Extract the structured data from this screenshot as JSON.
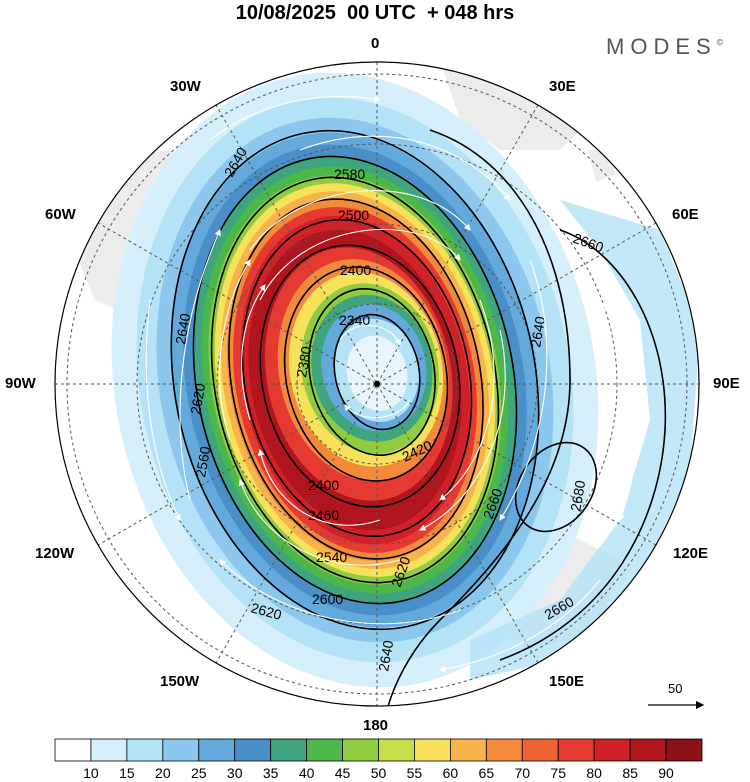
{
  "title": "10/08/2025  00 UTC  + 048 hrs",
  "brand": "MODES",
  "brand_mark": "©",
  "longitudes": {
    "lon_0": "0",
    "lon_30e": "30E",
    "lon_60e": "60E",
    "lon_90e": "90E",
    "lon_120e": "120E",
    "lon_150e": "150E",
    "lon_180": "180",
    "lon_150w": "150W",
    "lon_120w": "120W",
    "lon_90w": "90W",
    "lon_60w": "60W",
    "lon_30w": "30W"
  },
  "reference_vector": "50",
  "contours": [
    "2580",
    "2500",
    "2400",
    "2340",
    "2380",
    "2560",
    "2640",
    "2620",
    "2420",
    "2460",
    "2540",
    "2600",
    "2660",
    "2680"
  ],
  "colorbar": {
    "labels": [
      "10",
      "15",
      "20",
      "25",
      "30",
      "35",
      "40",
      "45",
      "50",
      "55",
      "60",
      "65",
      "70",
      "75",
      "80",
      "85",
      "90"
    ],
    "colors": [
      "#ffffff",
      "#d6f0fb",
      "#b4e2f7",
      "#8cc8ee",
      "#63a9dc",
      "#4a90c8",
      "#3fa57f",
      "#4cb849",
      "#8fcc3f",
      "#c8dd4a",
      "#f7e15a",
      "#f8b34a",
      "#f28a3a",
      "#ee6235",
      "#e53a32",
      "#cf2127",
      "#b0141c",
      "#8d1218"
    ]
  },
  "colors": {
    "land": "#ededed",
    "grid": "#555555",
    "contour": "#000000",
    "arrow": "#ffffff"
  }
}
